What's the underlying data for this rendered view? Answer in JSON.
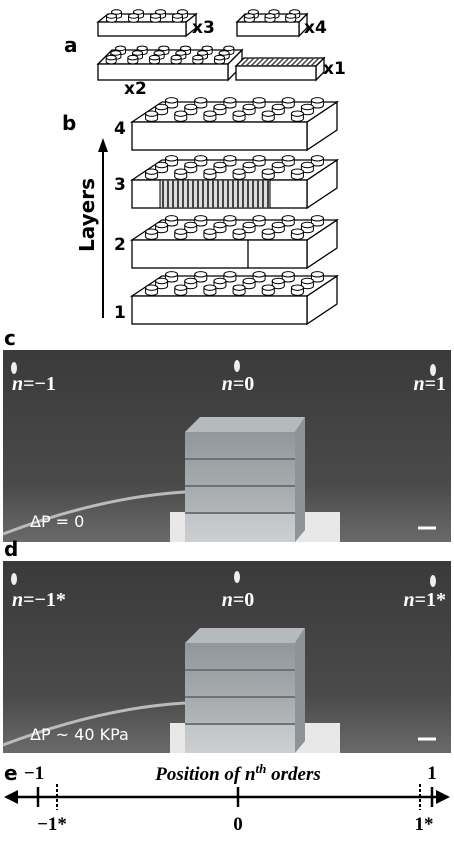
{
  "panel_a": {
    "label": "a",
    "counts": [
      "x3",
      "x4",
      "x2",
      "x1"
    ]
  },
  "panel_b": {
    "label": "b",
    "axis_label": "Layers",
    "layers": [
      "4",
      "3",
      "2",
      "1"
    ]
  },
  "panel_c": {
    "label": "c",
    "orders": [
      {
        "var": "n",
        "rest": "=−1"
      },
      {
        "var": "n",
        "rest": "=0"
      },
      {
        "var": "n",
        "rest": "=1"
      }
    ],
    "pressure": "ΔP = 0"
  },
  "panel_d": {
    "label": "d",
    "orders": [
      {
        "var": "n",
        "rest": "=−1*"
      },
      {
        "var": "n",
        "rest": "=0"
      },
      {
        "var": "n",
        "rest": "=1*"
      }
    ],
    "pressure": "ΔP ~ 40 KPa"
  },
  "panel_e": {
    "label": "e",
    "title": {
      "pre": "Position of n",
      "sup": "th",
      "post": " orders"
    },
    "ticks": [
      "−1",
      "−1*",
      "0",
      "1*",
      "1"
    ]
  }
}
